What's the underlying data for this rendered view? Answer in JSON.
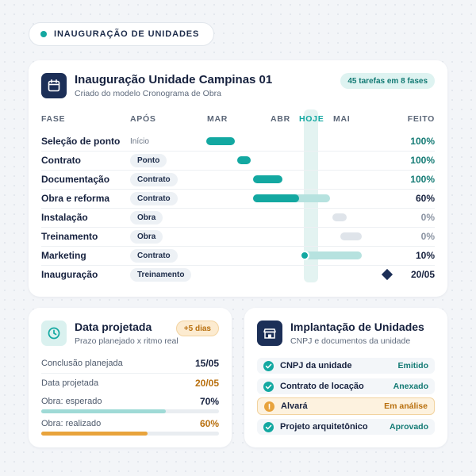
{
  "header": {
    "label": "INAUGURAÇÃO DE UNIDADES"
  },
  "main": {
    "title": "Inauguração Unidade Campinas 01",
    "subtitle": "Criado do modelo Cronograma de Obra",
    "badge": "45 tarefas em 8 fases",
    "icon": "calendar-icon",
    "columns": {
      "phase": "FASE",
      "after": "APÓS",
      "mar": "MAR",
      "abr": "ABR",
      "today": "HOJE",
      "mai": "MAI",
      "done": "FEITO"
    },
    "rows": [
      {
        "name": "Seleção de ponto",
        "after": "Início",
        "progress": 1.0,
        "done": "100%"
      },
      {
        "name": "Contrato",
        "after": "Ponto",
        "progress": 1.0,
        "done": "100%"
      },
      {
        "name": "Documentação",
        "after": "Contrato",
        "progress": 1.0,
        "done": "100%"
      },
      {
        "name": "Obra e reforma",
        "after": "Contrato",
        "progress": 0.6,
        "done": "60%"
      },
      {
        "name": "Instalação",
        "after": "Obra",
        "progress": 0,
        "done": "0%"
      },
      {
        "name": "Treinamento",
        "after": "Obra",
        "progress": 0,
        "done": "0%"
      },
      {
        "name": "Marketing",
        "after": "Contrato",
        "progress": 0.1,
        "done": "10%"
      },
      {
        "name": "Inauguração",
        "after": "Treinamento",
        "progress": null,
        "done": "20/05"
      }
    ]
  },
  "projection": {
    "title": "Data projetada",
    "subtitle": "Prazo planejado x ritmo real",
    "badge": "+5 dias",
    "icon": "clock-icon",
    "planned_label": "Conclusão planejada",
    "planned_value": "15/05",
    "projected_label": "Data projetada",
    "projected_value": "20/05",
    "expected_label": "Obra: esperado",
    "expected_value": "70%",
    "expected_fraction": 0.7,
    "actual_label": "Obra: realizado",
    "actual_value": "60%",
    "actual_fraction": 0.6
  },
  "implantation": {
    "title": "Implantação de Unidades",
    "subtitle": "CNPJ e documentos da unidade",
    "icon": "store-icon",
    "items": [
      {
        "label": "CNPJ da unidade",
        "status": "Emitido"
      },
      {
        "label": "Contrato de locação",
        "status": "Anexado"
      },
      {
        "label": "Alvará",
        "status": "Em análise"
      },
      {
        "label": "Projeto arquitetônico",
        "status": "Aprovado"
      }
    ]
  },
  "colors": {
    "accent": "#13a8a1",
    "accent_light": "#b6e2df",
    "navy": "#1c2f57",
    "warning": "#e8a33c",
    "done_green": "#137a74"
  }
}
